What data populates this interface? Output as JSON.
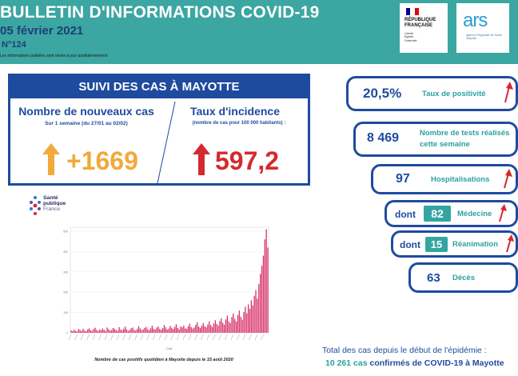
{
  "header": {
    "title": "BULLETIN D'INFORMATIONS COVID-19",
    "date": "05 février 2021",
    "number": "N°124",
    "note": "Les informations publiées sont mises à jour quotidiennement",
    "rf_logo": {
      "line1": "RÉPUBLIQUE",
      "line2": "FRANÇAISE",
      "motto1": "Liberté",
      "motto2": "Égalité",
      "motto3": "Fraternité",
      "flag_colors": [
        "#000091",
        "#ffffff",
        "#e1000f"
      ]
    },
    "ars_logo": {
      "text": "ars",
      "sub": "Agence Régionale de Santé Mayotte"
    }
  },
  "suivi": {
    "title": "SUIVI DES CAS À MAYOTTE",
    "nouveaux_title": "Nombre de nouveaux cas",
    "nouveaux_sub": "Sur 1 semaine (du 27/01 au 02/02)",
    "nouveaux_value": "+1669",
    "incidence_title": "Taux d'incidence",
    "incidence_sub": "(nombre de cas pour 100 000 habitants) :",
    "incidence_value": "597,2"
  },
  "spf_logo": {
    "line1": "Santé",
    "line2": "publique",
    "line3": "France"
  },
  "chart_caption": "Nombre de cas positifs quotidien à Mayotte depuis le 15 août 2020",
  "chart_data": {
    "type": "bar",
    "title": "",
    "xlabel": "Date",
    "ylabel": "",
    "yticks": [
      "0",
      "100",
      "200",
      "300",
      "400",
      "500"
    ],
    "ylim": [
      0,
      520
    ],
    "bar_color": "#d8346e",
    "values": [
      12,
      8,
      15,
      10,
      6,
      18,
      14,
      9,
      20,
      11,
      7,
      16,
      22,
      13,
      10,
      19,
      25,
      14,
      9,
      17,
      12,
      21,
      15,
      8,
      26,
      18,
      11,
      14,
      24,
      19,
      13,
      10,
      28,
      16,
      12,
      20,
      30,
      17,
      9,
      15,
      22,
      26,
      14,
      11,
      19,
      33,
      21,
      13,
      17,
      24,
      29,
      18,
      12,
      22,
      35,
      20,
      15,
      26,
      31,
      19,
      14,
      23,
      38,
      27,
      16,
      21,
      34,
      25,
      18,
      29,
      42,
      24,
      17,
      31,
      27,
      36,
      22,
      19,
      33,
      45,
      28,
      21,
      26,
      39,
      52,
      30,
      24,
      35,
      48,
      33,
      27,
      41,
      56,
      38,
      29,
      46,
      62,
      44,
      35,
      58,
      71,
      49,
      40,
      66,
      84,
      57,
      48,
      77,
      95,
      68,
      55,
      88,
      110,
      79,
      65,
      102,
      128,
      96,
      140,
      118,
      160,
      135,
      182,
      210,
      168,
      240,
      290,
      330,
      380,
      460,
      510,
      420
    ]
  },
  "stats": {
    "positivite": {
      "value": "20,5%",
      "label": "Taux de positivité"
    },
    "tests": {
      "value": "8 469",
      "label1": "Nombre de tests réalisés",
      "label2": "cette semaine"
    },
    "hospitalisations": {
      "value": "97",
      "label": "Hospitalisations"
    },
    "medecine": {
      "prefix": "dont",
      "value": "82",
      "label": "Médecine"
    },
    "reanimation": {
      "prefix": "dont",
      "value": "15",
      "label": "Réanimation"
    },
    "deces": {
      "value": "63",
      "label": "Décès"
    }
  },
  "total": {
    "line1": "Total des cas depuis le début de l'épidémie :",
    "number": "10 261 cas",
    "rest": "confirmés de COVID-19 à Mayotte"
  }
}
